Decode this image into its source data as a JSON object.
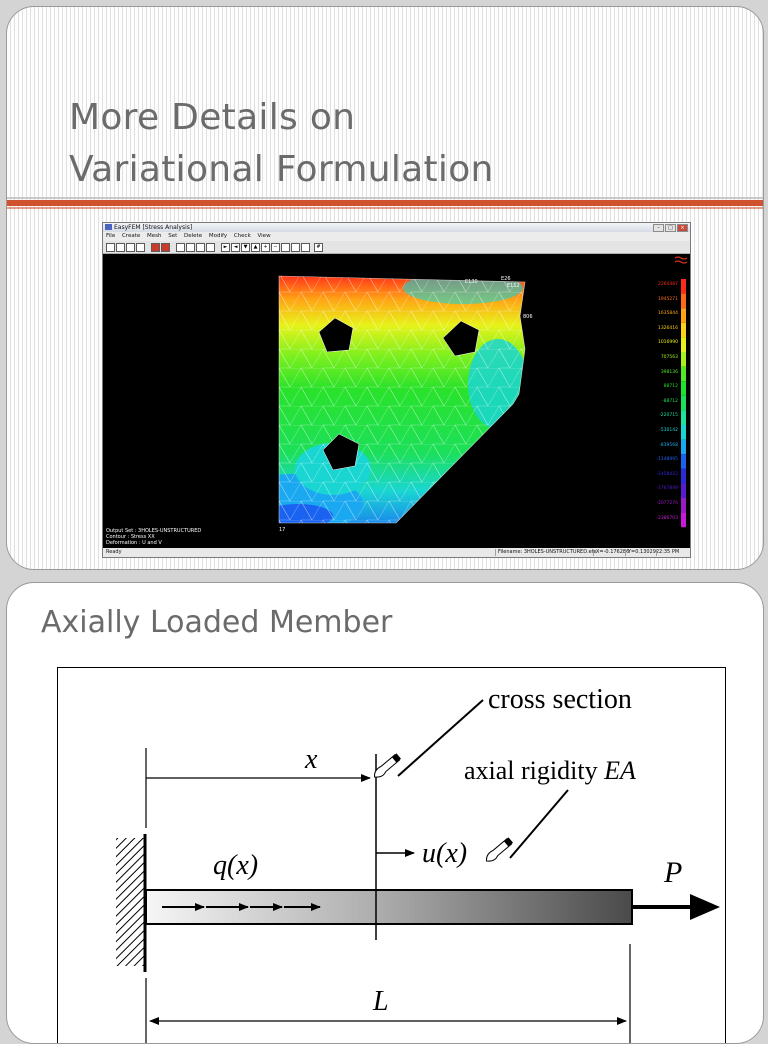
{
  "slide1": {
    "title_line1": "More Details on",
    "title_line2": "Variational Formulation",
    "accent_color": "#d0522e",
    "app": {
      "window_title": "EasyFEM [Stress Analysis]",
      "menu": [
        "File",
        "Create",
        "Mesh",
        "Set",
        "Delete",
        "Modify",
        "Check",
        "View"
      ],
      "status_ready": "Ready",
      "status_file": "Filename: 3HOLES-UNSTRUCTURED.efe",
      "status_x": "X=-0.176286",
      "status_y": "Y=0.130292",
      "status_time": "2:35 PM",
      "output_set": "Output Set : 3HOLES-UNSTRUCTURED",
      "contour": "Contour : Stress XX",
      "deformation": "Deformation : U and V",
      "legend": [
        "2264487",
        "1945271",
        "1635844",
        "1326416",
        "1016990",
        "707563",
        "398136",
        "88712",
        "-88712",
        "-220715",
        "-530142",
        "-839568",
        "-1148995",
        "-1458422",
        "-1767849",
        "-2077276",
        "-2386703"
      ],
      "legend_colors": [
        "#ff2a1a",
        "#ff6a1a",
        "#ffa515",
        "#ffd21a",
        "#e8f21a",
        "#a8f01e",
        "#52e82a",
        "#1fe22e",
        "#1ce05a",
        "#1ee49a",
        "#1ad6d2",
        "#1aa8f0",
        "#1a62f0",
        "#2a2ad8",
        "#5a1ad0",
        "#9a1ac8",
        "#c81ad8"
      ],
      "node_labels": [
        "E130",
        "E26",
        "E112",
        "806",
        "17"
      ]
    }
  },
  "slide2": {
    "title": "Axially Loaded Member",
    "labels": {
      "cross_section": "cross section",
      "axial_rigidity": "axial rigidity",
      "axial_rigidity_symbol": "EA",
      "x": "x",
      "u": "u(x)",
      "q": "q(x)",
      "P": "P",
      "L": "L"
    }
  }
}
